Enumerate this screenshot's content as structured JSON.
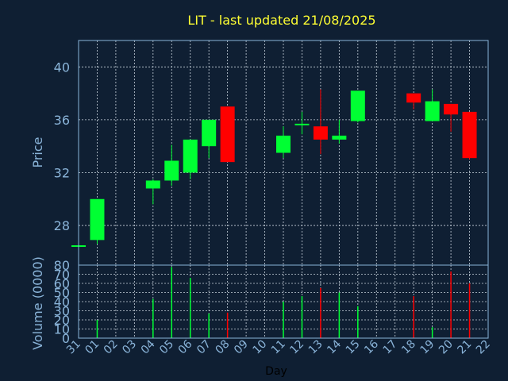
{
  "chart_data": {
    "type": "candlestick",
    "title": "LIT - last updated 21/08/2025",
    "ylabel": "Price",
    "y2label": "Volume (0000)",
    "xlabel": "Day",
    "ylim": [
      25,
      42
    ],
    "yticks": [
      28,
      32,
      36,
      40
    ],
    "vlim": [
      0,
      80
    ],
    "vticks": [
      0,
      10,
      20,
      30,
      40,
      50,
      60,
      70,
      80
    ],
    "xticks": [
      "31",
      "01",
      "02",
      "03",
      "04",
      "05",
      "06",
      "07",
      "08",
      "09",
      "10",
      "11",
      "12",
      "13",
      "14",
      "15",
      "16",
      "17",
      "18",
      "19",
      "20",
      "21",
      "22"
    ],
    "colors": {
      "up": "#00ff33",
      "down": "#ff0000",
      "grid": "#c8d2dc",
      "axis": "#8ab4d9",
      "background": "#0f1f33"
    },
    "candles": [
      {
        "day": "31",
        "open": 26.5,
        "high": 26.6,
        "low": 26.3,
        "close": 26.5,
        "volume": 0
      },
      {
        "day": "01",
        "open": 26.9,
        "high": 30.0,
        "low": 26.6,
        "close": 30.0,
        "volume": 20
      },
      {
        "day": "04",
        "open": 30.8,
        "high": 31.5,
        "low": 29.6,
        "close": 31.4,
        "volume": 43
      },
      {
        "day": "05",
        "open": 31.4,
        "high": 34.1,
        "low": 31.0,
        "close": 32.9,
        "volume": 78
      },
      {
        "day": "06",
        "open": 32.0,
        "high": 34.5,
        "low": 31.5,
        "close": 34.5,
        "volume": 66
      },
      {
        "day": "07",
        "open": 34.0,
        "high": 36.0,
        "low": 33.1,
        "close": 36.0,
        "volume": 27
      },
      {
        "day": "08",
        "open": 37.0,
        "high": 37.0,
        "low": 32.8,
        "close": 32.8,
        "volume": 28
      },
      {
        "day": "11",
        "open": 33.5,
        "high": 35.5,
        "low": 33.1,
        "close": 34.8,
        "volume": 40
      },
      {
        "day": "12",
        "open": 35.7,
        "high": 36.6,
        "low": 34.9,
        "close": 35.7,
        "volume": 46
      },
      {
        "day": "13",
        "open": 35.5,
        "high": 38.3,
        "low": 33.4,
        "close": 34.5,
        "volume": 55
      },
      {
        "day": "14",
        "open": 34.5,
        "high": 36.0,
        "low": 34.2,
        "close": 34.8,
        "volume": 50
      },
      {
        "day": "15",
        "open": 35.9,
        "high": 38.2,
        "low": 35.8,
        "close": 38.2,
        "volume": 35
      },
      {
        "day": "18",
        "open": 38.0,
        "high": 38.0,
        "low": 36.8,
        "close": 37.3,
        "volume": 46
      },
      {
        "day": "19",
        "open": 35.9,
        "high": 38.3,
        "low": 35.9,
        "close": 37.4,
        "volume": 12
      },
      {
        "day": "20",
        "open": 37.2,
        "high": 37.2,
        "low": 35.1,
        "close": 36.4,
        "volume": 73
      },
      {
        "day": "21",
        "open": 36.6,
        "high": 36.6,
        "low": 33.0,
        "close": 33.1,
        "volume": 60
      }
    ]
  }
}
